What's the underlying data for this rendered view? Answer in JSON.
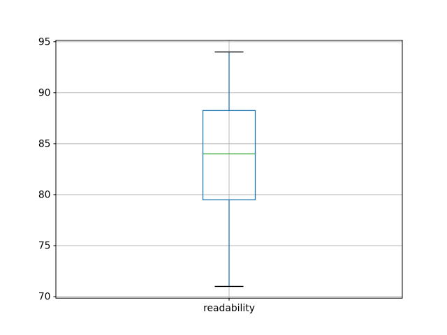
{
  "chart_data": {
    "type": "boxplot",
    "title": "",
    "xlabel": "",
    "ylabel": "",
    "categories": [
      "readability"
    ],
    "series": [
      {
        "name": "readability",
        "whisker_low": 71,
        "q1": 79.5,
        "median": 84,
        "q3": 88.25,
        "whisker_high": 94
      }
    ],
    "ylim": [
      69.85,
      95.15
    ],
    "yticks": [
      70,
      75,
      80,
      85,
      90,
      95
    ],
    "grid": true,
    "legend": "none",
    "colors": {
      "box": "#1f77b4",
      "whisker": "#1f77b4",
      "cap": "#000000",
      "median": "#2ca02c",
      "grid": "#b0b0b0",
      "spine": "#000000",
      "tick_label": "#000000",
      "background": "#ffffff"
    }
  }
}
